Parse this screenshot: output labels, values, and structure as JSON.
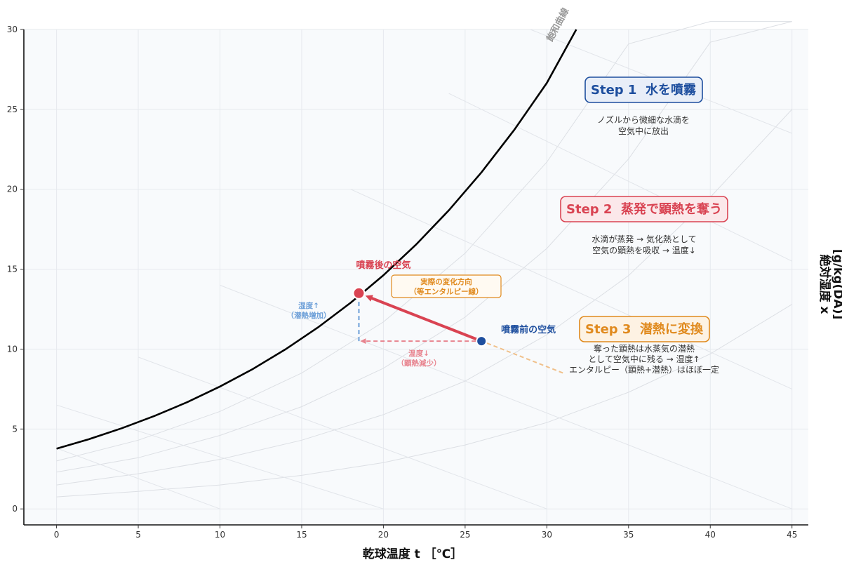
{
  "chart_data": {
    "type": "line",
    "title": "",
    "xlabel": "乾球温度 t ［℃］",
    "ylabel_line1": "絶対湿度 x",
    "ylabel_line2": "[g/kg(DA)]",
    "xlim": [
      -2,
      46
    ],
    "ylim": [
      -1,
      30
    ],
    "x_ticks": [
      0,
      5,
      10,
      15,
      20,
      25,
      30,
      35,
      40,
      45
    ],
    "y_ticks": [
      0,
      5,
      10,
      15,
      20,
      25,
      30
    ],
    "grid": true,
    "saturation_curve": {
      "name": "飽和曲線",
      "x": [
        0,
        2,
        4,
        6,
        8,
        10,
        12,
        14,
        16,
        18,
        20,
        22,
        24,
        26,
        28,
        30,
        31.8
      ],
      "y": [
        3.77,
        4.37,
        5.05,
        5.82,
        6.68,
        7.66,
        8.75,
        9.98,
        11.36,
        12.9,
        14.62,
        16.54,
        18.68,
        21.06,
        23.71,
        26.65,
        30.0
      ]
    },
    "background_rh_curves": [
      {
        "x": [
          0,
          5,
          10,
          15,
          20,
          25,
          30,
          35,
          40,
          45
        ],
        "y": [
          3.0,
          4.3,
          6.1,
          8.5,
          11.7,
          16.0,
          21.7,
          29.1,
          30.5,
          30.5
        ]
      },
      {
        "x": [
          0,
          5,
          10,
          15,
          20,
          25,
          30,
          35,
          40,
          45
        ],
        "y": [
          2.3,
          3.2,
          4.6,
          6.4,
          8.8,
          12.0,
          16.3,
          21.9,
          29.2,
          30.5
        ]
      },
      {
        "x": [
          0,
          5,
          10,
          15,
          20,
          25,
          30,
          35,
          40,
          45
        ],
        "y": [
          1.5,
          2.2,
          3.1,
          4.3,
          5.9,
          8.0,
          10.9,
          14.6,
          19.5,
          25.0
        ]
      },
      {
        "x": [
          0,
          5,
          10,
          15,
          20,
          25,
          30,
          35,
          40,
          45
        ],
        "y": [
          0.75,
          1.1,
          1.5,
          2.1,
          2.9,
          4.0,
          5.4,
          7.3,
          9.7,
          12.8
        ]
      }
    ],
    "background_enthalpy_lines": [
      {
        "x": [
          0,
          10
        ],
        "y": [
          3.8,
          0
        ]
      },
      {
        "x": [
          0,
          20
        ],
        "y": [
          6.5,
          0
        ]
      },
      {
        "x": [
          5,
          30
        ],
        "y": [
          9.5,
          0
        ]
      },
      {
        "x": [
          10,
          45
        ],
        "y": [
          14.0,
          0
        ]
      },
      {
        "x": [
          18,
          45
        ],
        "y": [
          20.0,
          7.5
        ]
      },
      {
        "x": [
          24,
          45
        ],
        "y": [
          26.0,
          15.5
        ]
      },
      {
        "x": [
          29,
          45
        ],
        "y": [
          30.0,
          23.5
        ]
      }
    ],
    "state_before": {
      "label": "噴霧前の空気",
      "x": 26.0,
      "y": 10.5
    },
    "state_after": {
      "label": "噴霧後の空気",
      "x": 18.5,
      "y": 13.5
    },
    "enthalpy_extension": {
      "x": [
        26.0,
        31.0
      ],
      "y": [
        10.5,
        8.5
      ]
    },
    "temp_decrease": {
      "label_line1": "温度↓",
      "label_line2": "（顕熱減少）"
    },
    "humidity_increase": {
      "label_line1": "湿度↑",
      "label_line2": "（潜熱増加）"
    },
    "actual_direction": {
      "label_line1": "実際の変化方向",
      "label_line2": "（等エンタルピー線）"
    }
  },
  "steps": [
    {
      "title": "Step 1  水を噴霧",
      "desc": [
        "ノズルから微細な水滴を",
        "空気中に放出"
      ],
      "color": "#1d4e9e",
      "fill": "#e8eef8"
    },
    {
      "title": "Step 2  蒸発で顕熱を奪う",
      "desc": [
        "水滴が蒸発 → 気化熱として",
        "空気の顕熱を吸収 → 温度↓"
      ],
      "color": "#d94352",
      "fill": "#fbe8ea"
    },
    {
      "title": "Step 3  潜熱に変換",
      "desc": [
        "奪った顕熱は水蒸気の潜熱",
        "として空気中に残る → 湿度↑",
        "エンタルピー（顕熱+潜熱）はほぼ一定"
      ],
      "color": "#e08a1e",
      "fill": "#fdf2e3"
    }
  ],
  "colors": {
    "before": "#1d4e9e",
    "after": "#d94352",
    "arrow": "#d94352",
    "humidity": "#6c9fd8",
    "temp": "#e8848f",
    "enthalpy": "#f0c08a",
    "orange": "#e08a1e",
    "curve": "#000000",
    "grid": "#e6e9ee",
    "plot_bg": "#f8fafc"
  }
}
